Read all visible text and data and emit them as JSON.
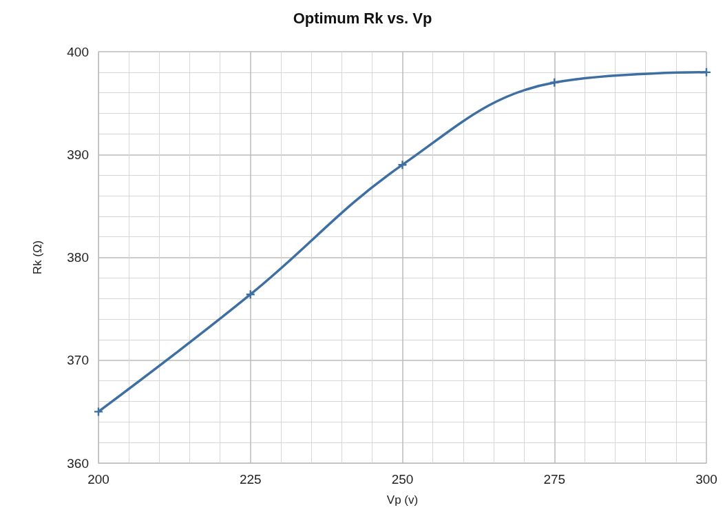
{
  "chart_data": {
    "type": "line",
    "title": "Optimum Rk vs. Vp",
    "xlabel": "Vp (v)",
    "ylabel": "Rk (Ω)",
    "x": [
      200,
      225,
      250,
      275,
      300
    ],
    "series": [
      {
        "color": "#3e6fa3",
        "values": [
          365,
          376.4,
          389,
          397,
          398
        ]
      }
    ],
    "xlim": [
      200,
      300
    ],
    "xticks": [
      200,
      225,
      250,
      275,
      300
    ],
    "ylim": [
      360,
      400
    ],
    "yticks": [
      360,
      370,
      380,
      390,
      400
    ],
    "grid": true,
    "marker": "cross",
    "line_style": "solid"
  }
}
